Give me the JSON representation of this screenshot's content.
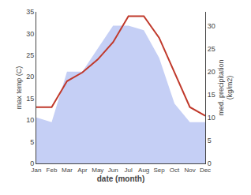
{
  "chart_data": {
    "type": "line",
    "xlabel": "date (month)",
    "ylabel": "max temp (C)",
    "y2label": "med. precipitation\n(kg/m2)",
    "categories": [
      "Jan",
      "Feb",
      "Mar",
      "Apr",
      "May",
      "Jun",
      "Jul",
      "Aug",
      "Sep",
      "Oct",
      "Nov",
      "Dec"
    ],
    "series": [
      {
        "type": "area",
        "axis": "y2",
        "color": "#c5cff5",
        "values": [
          10,
          9,
          20,
          20,
          25,
          30,
          30,
          29,
          23,
          13,
          9,
          9
        ]
      },
      {
        "type": "line",
        "color": "#c0392b",
        "values": [
          13,
          13,
          19,
          21,
          24,
          28,
          34,
          34,
          29,
          21,
          13,
          11
        ]
      }
    ],
    "ylim": [
      0,
      35
    ],
    "yticks": [
      0,
      5,
      10,
      15,
      20,
      25,
      30,
      35
    ],
    "y2lim": [
      0,
      33
    ],
    "y2ticks": [
      0,
      5,
      10,
      15,
      20,
      25,
      30
    ],
    "grid": false
  }
}
